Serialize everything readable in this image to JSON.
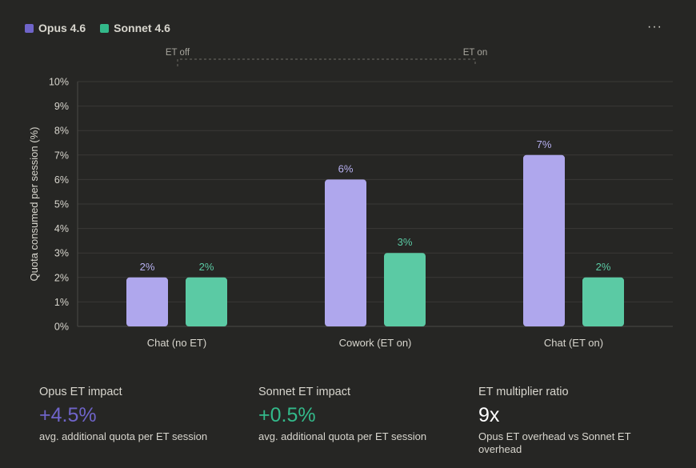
{
  "legend": [
    {
      "name": "Opus 4.6",
      "color": "#6f64c9"
    },
    {
      "name": "Sonnet 4.6",
      "color": "#33b98a"
    }
  ],
  "menu": {
    "more_icon": "more-horizontal-icon",
    "more_label": "···"
  },
  "bracket": {
    "left_label": "ET off",
    "right_label": "ET on"
  },
  "chart_data": {
    "type": "bar",
    "title": "",
    "xlabel": "",
    "ylabel": "Quota consumed per session (%)",
    "categories": [
      "Chat (no ET)",
      "Cowork (ET on)",
      "Chat (ET on)"
    ],
    "series": [
      {
        "name": "Opus 4.6",
        "values": [
          2,
          6,
          7
        ],
        "labels": [
          "2%",
          "6%",
          "7%"
        ],
        "bar_color": "#afa7ed",
        "label_color": "#b8b1f2"
      },
      {
        "name": "Sonnet 4.6",
        "values": [
          2,
          3,
          2
        ],
        "labels": [
          "2%",
          "3%",
          "2%"
        ],
        "bar_color": "#5bcaa4",
        "label_color": "#5bcaa4"
      }
    ],
    "ylim": [
      0,
      10
    ],
    "yticks": [
      0,
      1,
      2,
      3,
      4,
      5,
      6,
      7,
      8,
      9,
      10
    ],
    "ytick_labels": [
      "0%",
      "1%",
      "2%",
      "3%",
      "4%",
      "5%",
      "6%",
      "7%",
      "8%",
      "9%",
      "10%"
    ],
    "grid": true,
    "legend_position": "top-left"
  },
  "stats": [
    {
      "title": "Opus ET impact",
      "value": "+4.5%",
      "value_color": "#6f64c9",
      "desc": "avg. additional quota per ET session"
    },
    {
      "title": "Sonnet ET impact",
      "value": "+0.5%",
      "value_color": "#33b98a",
      "desc": "avg. additional quota per ET session"
    },
    {
      "title": "ET multiplier ratio",
      "value": "9x",
      "value_color": "#ffffff",
      "desc": "Opus ET overhead vs Sonnet ET overhead"
    }
  ]
}
